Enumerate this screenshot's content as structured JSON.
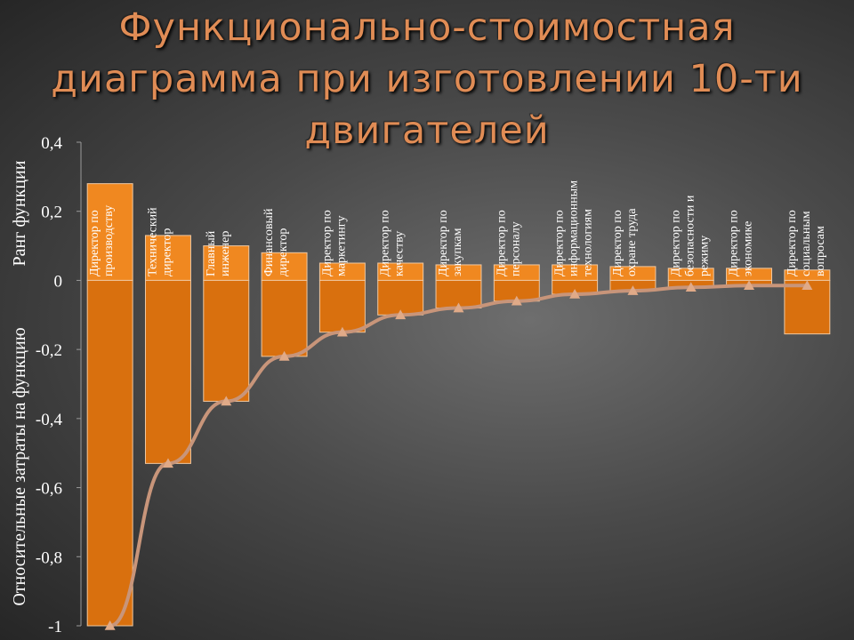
{
  "title": {
    "line1": "Функционально-стоимостная",
    "line2": "диаграмма при изготовлении 10-ти",
    "line3": "двигателей"
  },
  "colors": {
    "bar_fill": "#d9700e",
    "bar_highlight": "#f08820",
    "bar_stroke": "#f0c8a0",
    "line": "#c8957a",
    "marker": "#e0aa88",
    "text": "#ffffff",
    "title": "#e08c55"
  },
  "chart_data": {
    "type": "bar",
    "ylabel_top": "Ранг функции",
    "ylabel_bottom": "Относительные затраты на функцию",
    "ylim": [
      -1,
      0.4
    ],
    "yticks": [
      "0,4",
      "0,2",
      "0",
      "-0,2",
      "-0,4",
      "-0,6",
      "-0,8",
      "-1"
    ],
    "ytick_values": [
      0.4,
      0.2,
      0,
      -0.2,
      -0.4,
      -0.6,
      -0.8,
      -1
    ],
    "categories": [
      [
        "Директор по",
        "производству"
      ],
      [
        "Технический",
        "директор"
      ],
      [
        "Главный",
        "инженер"
      ],
      [
        "Финансовый",
        "директор"
      ],
      [
        "Директор по",
        "маркетингу"
      ],
      [
        "Директор по",
        "качеству"
      ],
      [
        "Директор по",
        "закупкам"
      ],
      [
        "Директор по",
        "персоналу"
      ],
      [
        "Директор по",
        "информационным",
        "технологиям"
      ],
      [
        "Директор по",
        "охране труда"
      ],
      [
        "Директор по",
        "безопасности и",
        "режиму"
      ],
      [
        "Директор по",
        "экономике"
      ],
      [
        "Директор по",
        "социальным",
        "вопросам"
      ]
    ],
    "series": [
      {
        "type": "bar",
        "values": [
          0.28,
          0.13,
          0.1,
          0.08,
          0.05,
          0.05,
          0.045,
          0.045,
          0.045,
          0.04,
          0.035,
          0.035,
          0.03
        ]
      },
      {
        "type": "bar",
        "values": [
          -1.0,
          -0.53,
          -0.35,
          -0.22,
          -0.15,
          -0.1,
          -0.08,
          -0.06,
          -0.04,
          -0.03,
          -0.02,
          -0.015,
          -0.155
        ]
      },
      {
        "type": "line",
        "marker": "triangle",
        "values": [
          -1.0,
          -0.53,
          -0.35,
          -0.22,
          -0.15,
          -0.1,
          -0.08,
          -0.06,
          -0.04,
          -0.03,
          -0.02,
          -0.015,
          -0.015
        ]
      }
    ]
  }
}
